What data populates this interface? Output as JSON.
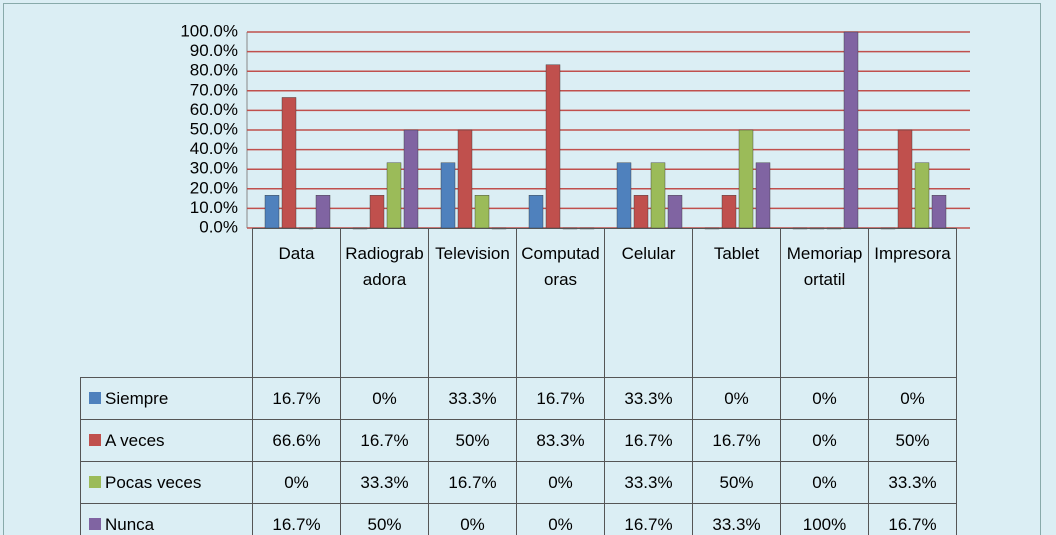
{
  "chart_data": {
    "type": "bar",
    "categories": [
      "Data",
      "Radiograbadora",
      "Television",
      "Computadoras",
      "Celular",
      "Tablet",
      "Memoriaportatil",
      "Impresora"
    ],
    "series": [
      {
        "name": "Siempre",
        "color": "#4f81bd",
        "values": [
          16.7,
          0,
          33.3,
          16.7,
          33.3,
          0,
          0,
          0
        ],
        "value_labels": [
          "16.7%",
          "0%",
          "33.3%",
          "16.7%",
          "33.3%",
          "0%",
          "0%",
          "0%"
        ]
      },
      {
        "name": "A veces",
        "color": "#c0504d",
        "values": [
          66.6,
          16.7,
          50,
          83.3,
          16.7,
          16.7,
          0,
          50
        ],
        "value_labels": [
          "66.6%",
          "16.7%",
          "50%",
          "83.3%",
          "16.7%",
          "16.7%",
          "0%",
          "50%"
        ]
      },
      {
        "name": "Pocas veces",
        "color": "#9bbb59",
        "values": [
          0,
          33.3,
          16.7,
          0,
          33.3,
          50,
          0,
          33.3
        ],
        "value_labels": [
          "0%",
          "33.3%",
          "16.7%",
          "0%",
          "33.3%",
          "50%",
          "0%",
          "33.3%"
        ]
      },
      {
        "name": "Nunca",
        "color": "#8064a2",
        "values": [
          16.7,
          50,
          0,
          0,
          16.7,
          33.3,
          100,
          16.7
        ],
        "value_labels": [
          "16.7%",
          "50%",
          "0%",
          "0%",
          "16.7%",
          "33.3%",
          "100%",
          "16.7%"
        ]
      }
    ],
    "ylim": [
      0,
      100
    ],
    "yticks": [
      {
        "value": 0,
        "label": "0.0%"
      },
      {
        "value": 10,
        "label": "10.0%"
      },
      {
        "value": 20,
        "label": "20.0%"
      },
      {
        "value": 30,
        "label": "30.0%"
      },
      {
        "value": 40,
        "label": "40.0%"
      },
      {
        "value": 50,
        "label": "50.0%"
      },
      {
        "value": 60,
        "label": "60.0%"
      },
      {
        "value": 70,
        "label": "70.0%"
      },
      {
        "value": 80,
        "label": "80.0%"
      },
      {
        "value": 90,
        "label": "90.0%"
      },
      {
        "value": 100,
        "label": "100.0%"
      }
    ],
    "grid": true,
    "grid_color": "#c0504d",
    "data_table": true
  }
}
